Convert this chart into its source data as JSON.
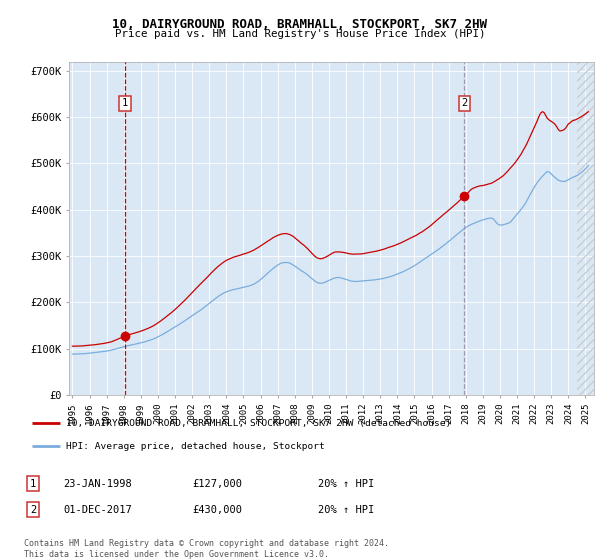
{
  "title1": "10, DAIRYGROUND ROAD, BRAMHALL, STOCKPORT, SK7 2HW",
  "title2": "Price paid vs. HM Land Registry's House Price Index (HPI)",
  "bg_color": "#dae8f5",
  "red_color": "#cc0000",
  "blue_color": "#7aaddd",
  "marker_color": "#cc0000",
  "vline1_color": "#cc0000",
  "vline2_color": "#9999bb",
  "transaction1_year": 1998.07,
  "transaction1_price": 127000,
  "transaction2_year": 2017.92,
  "transaction2_price": 430000,
  "legend_line1": "10, DAIRYGROUND ROAD, BRAMHALL, STOCKPORT, SK7 2HW (detached house)",
  "legend_line2": "HPI: Average price, detached house, Stockport",
  "label1_date": "23-JAN-1998",
  "label1_price": "£127,000",
  "label1_hpi": "20% ↑ HPI",
  "label2_date": "01-DEC-2017",
  "label2_price": "£430,000",
  "label2_hpi": "20% ↑ HPI",
  "footer": "Contains HM Land Registry data © Crown copyright and database right 2024.\nThis data is licensed under the Open Government Licence v3.0.",
  "ylabel_vals": [
    0,
    100000,
    200000,
    300000,
    400000,
    500000,
    600000,
    700000
  ],
  "ylabel_labels": [
    "£0",
    "£100K",
    "£200K",
    "£300K",
    "£400K",
    "£500K",
    "£600K",
    "£700K"
  ],
  "xmin": 1994.8,
  "xmax": 2025.5,
  "ymin": 0,
  "ymax": 720000,
  "hatch_start": 2024.5
}
